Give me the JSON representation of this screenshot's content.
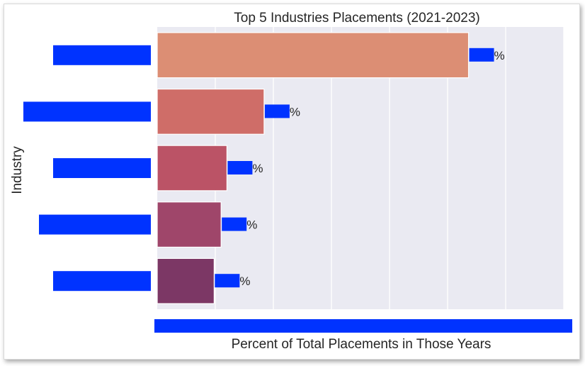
{
  "chart_data": {
    "type": "bar",
    "orientation": "horizontal",
    "title": "Top 5 Industries Placements (2021-2023)",
    "xlabel": "Percent of Total Placements in Those Years",
    "ylabel": "Industry",
    "xlim": [
      0,
      35
    ],
    "grid": true,
    "categories": [
      "",
      "",
      "",
      "",
      ""
    ],
    "values": [
      26.8,
      9.2,
      6.0,
      5.5,
      4.9
    ],
    "value_suffix": "%",
    "bar_colors": [
      "#dc8e74",
      "#cf6d68",
      "#bb5366",
      "#9f466a",
      "#7c3765"
    ],
    "redaction_color": "#0033ff",
    "plot_background": "#eaeaf2"
  }
}
